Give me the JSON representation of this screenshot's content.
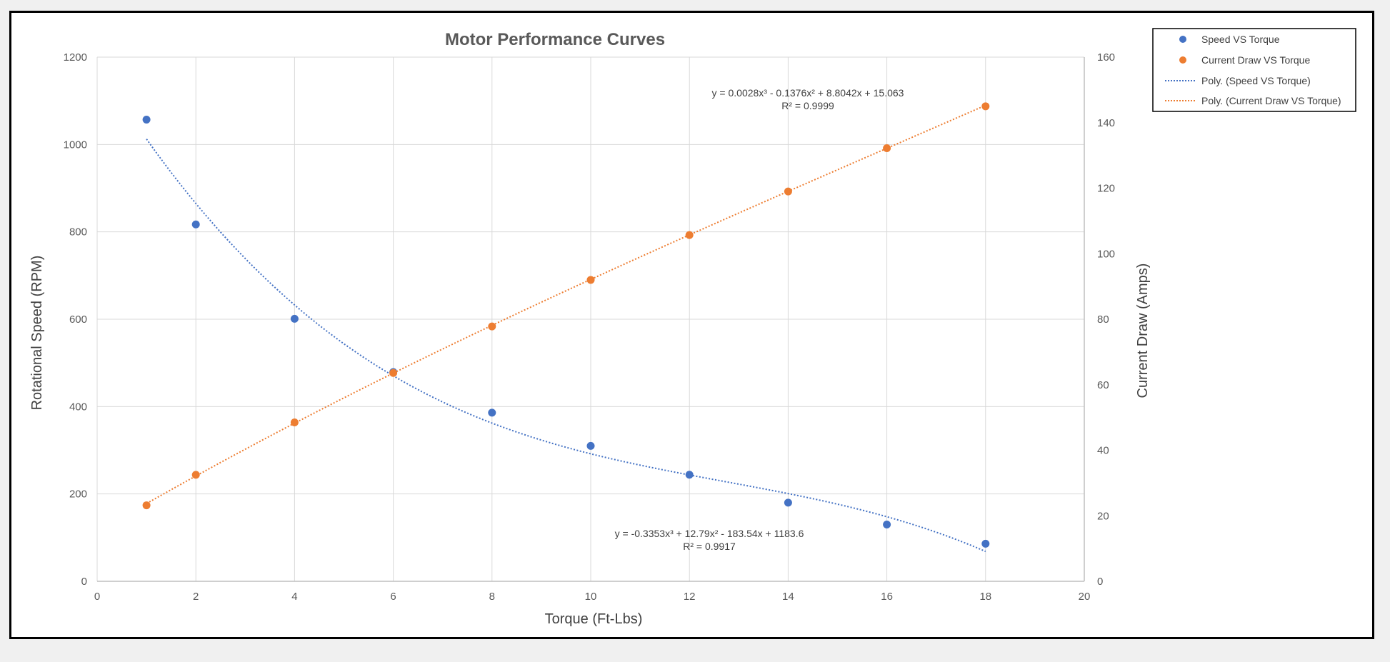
{
  "chart_data": {
    "type": "scatter",
    "title": "Motor Performance Curves",
    "xlabel": "Torque (Ft-Lbs)",
    "ylabel": "Rotational Speed (RPM)",
    "y2label": "Current Draw (Amps)",
    "xlim": [
      0,
      20
    ],
    "ylim": [
      0,
      1200
    ],
    "y2lim": [
      0,
      160
    ],
    "xticks": [
      "0",
      "2",
      "4",
      "6",
      "8",
      "10",
      "12",
      "14",
      "16",
      "18",
      "20"
    ],
    "yticks": [
      "0",
      "200",
      "400",
      "600",
      "800",
      "1000",
      "1200"
    ],
    "y2ticks": [
      "0",
      "20",
      "40",
      "60",
      "80",
      "100",
      "120",
      "140",
      "160"
    ],
    "grid": true,
    "legend_position": "top-right",
    "colors": {
      "speed": "#4472C4",
      "current": "#ED7D31"
    },
    "series": [
      {
        "name": "Speed VS Torque",
        "axis": "left",
        "x": [
          1,
          2,
          4,
          6,
          8,
          10,
          12,
          14,
          16,
          18
        ],
        "y": [
          1057,
          817,
          601,
          479,
          386,
          310,
          244,
          180,
          130,
          86
        ]
      },
      {
        "name": "Current Draw VS Torque",
        "axis": "right",
        "x": [
          1,
          2,
          4,
          6,
          8,
          10,
          12,
          14,
          16,
          18
        ],
        "y": [
          23.2,
          32.5,
          48.5,
          63.6,
          77.8,
          92.0,
          105.7,
          119.0,
          132.2,
          145.0
        ]
      }
    ],
    "trendlines": [
      {
        "name": "Poly. (Speed VS Torque)",
        "axis": "left",
        "coefficients": [
          -0.3353,
          12.79,
          -183.54,
          1183.6
        ],
        "x_range": [
          1,
          18
        ],
        "equation": "y = -0.3353x³ + 12.79x² - 183.54x + 1183.6",
        "r2": "R² = 0.9917"
      },
      {
        "name": "Poly. (Current Draw VS Torque)",
        "axis": "right",
        "coefficients": [
          0.0028,
          -0.1376,
          8.8042,
          15.063
        ],
        "x_range": [
          1,
          18
        ],
        "equation": "y = 0.0028x³ - 0.1376x² + 8.8042x + 15.063",
        "r2": "R² = 0.9999"
      }
    ]
  }
}
